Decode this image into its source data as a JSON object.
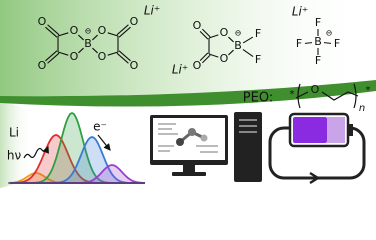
{
  "anions": [
    {
      "cation": "Li⁺",
      "charge": "⊖",
      "boron": "B",
      "atoms": [
        "O",
        "O",
        "O",
        "O",
        "O",
        "O",
        "O",
        "O"
      ]
    },
    {
      "cation": "Li⁺",
      "charge": "⊖",
      "boron": "B",
      "atoms": [
        "O",
        "O",
        "O",
        "O",
        "F",
        "F"
      ]
    },
    {
      "cation": "Li⁺",
      "charge": "⊖",
      "boron": "B",
      "atoms": [
        "F",
        "F",
        "F",
        "F"
      ]
    }
  ],
  "polymer": {
    "label": "PEO:",
    "end_groups": [
      "*",
      "*"
    ],
    "oxygen": "O",
    "repeat": "n"
  },
  "spectrum": {
    "labels": [
      "Li",
      "hν",
      "e⁻"
    ]
  }
}
